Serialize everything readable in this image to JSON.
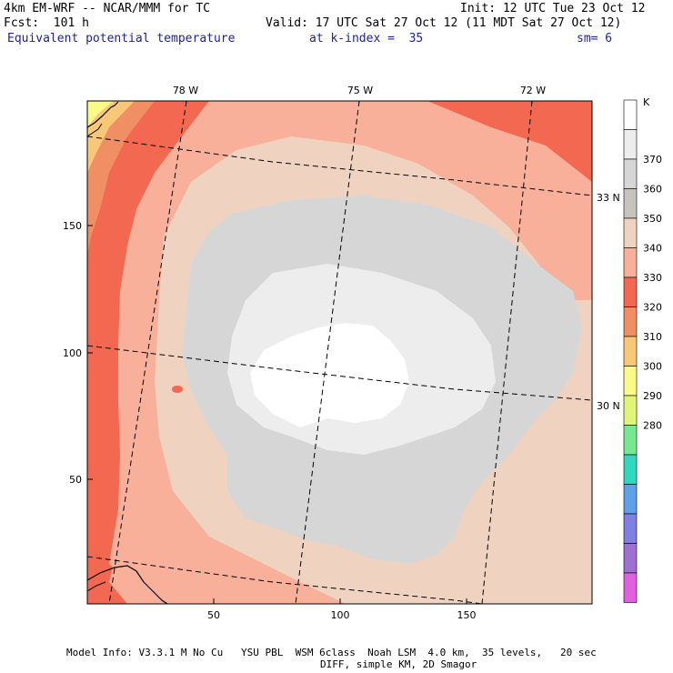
{
  "header": {
    "model_title": "4km EM-WRF -- NCAR/MMM for TC",
    "forecast": "Fcst:  101 h",
    "init": "Init: 12 UTC Tue 23 Oct 12",
    "valid": "Valid: 17 UTC Sat 27 Oct 12 (11 MDT Sat 27 Oct 12)",
    "field_name": "Equivalent potential temperature",
    "level": "at k-index =  35",
    "smoothing": "sm= 6"
  },
  "map": {
    "x_ticks": [
      "50",
      "100",
      "150"
    ],
    "y_ticks": [
      "150",
      "100",
      "50"
    ],
    "longitude_labels": [
      "78 W",
      "75 W",
      "72 W"
    ],
    "latitude_labels": [
      "33 N",
      "30 N"
    ]
  },
  "legend": {
    "unit": "K",
    "labels": [
      "370",
      "360",
      "350",
      "340",
      "330",
      "320",
      "310",
      "300",
      "290",
      "280"
    ],
    "colors": [
      "#ffffff",
      "#ededed",
      "#d6d6d6",
      "#c7c4c0",
      "#efd3c0",
      "#f8b09a",
      "#f36850",
      "#f08e64",
      "#f8c878",
      "#fafa88",
      "#e0f578",
      "#78e890",
      "#30d8c0",
      "#60a0e8",
      "#8080e0",
      "#a070d0",
      "#e060e0"
    ]
  },
  "footer": {
    "line1": "Model Info: V3.3.1 M No Cu   YSU PBL  WSM 6class  Noah LSM  4.0 km,  35 levels,   20 sec",
    "line2": "DIFF, simple KM, 2D Smagor"
  },
  "colors": {
    "header_blue": "#2020a0",
    "background": "#efd3c0"
  }
}
